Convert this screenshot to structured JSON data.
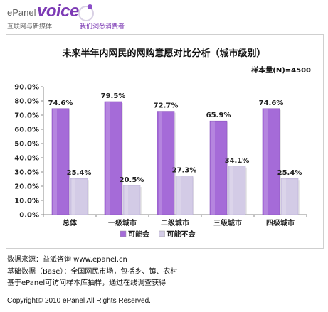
{
  "header": {
    "logo_epanel": "ePanel",
    "logo_voice": "voice",
    "logo_sub_left": "互联网与新媒体",
    "logo_sub_right": "我们洞悉消费者"
  },
  "chart_data": {
    "type": "bar",
    "title": "未来半年内网民的网购意愿对比分析（城市级别）",
    "subtitle": "样本量(N)=4500",
    "categories": [
      "总体",
      "一级城市",
      "二级城市",
      "三级城市",
      "四级城市"
    ],
    "series": [
      {
        "name": "可能会",
        "values": [
          74.6,
          79.5,
          72.7,
          65.9,
          74.6
        ],
        "labels": [
          "74.6%",
          "79.5%",
          "72.7%",
          "65.9%",
          "74.6%"
        ],
        "color": "#a56bd8"
      },
      {
        "name": "可能不会",
        "values": [
          25.4,
          20.5,
          27.3,
          34.1,
          25.4
        ],
        "labels": [
          "25.4%",
          "20.5%",
          "27.3%",
          "34.1%",
          "25.4%"
        ],
        "color": "#d3cbe6"
      }
    ],
    "ylim": [
      0,
      90
    ],
    "yticks": [
      0,
      10,
      20,
      30,
      40,
      50,
      60,
      70,
      80,
      90
    ],
    "ytick_labels": [
      "0.0%",
      "10.0%",
      "20.0%",
      "30.0%",
      "40.0%",
      "50.0%",
      "60.0%",
      "70.0%",
      "80.0%",
      "90.0%"
    ],
    "legend": "bottom",
    "grid": false
  },
  "footer": {
    "source": "数据来源：益派咨询   www.epanel.cn",
    "base": "基础数据（Base）：全国网民市场，包括乡、镇、农村",
    "method": "基于ePanel可访问样本库抽样，通过在线调查获得",
    "copyright": "Copyright© 2010 ePanel All Rights Reserved."
  }
}
